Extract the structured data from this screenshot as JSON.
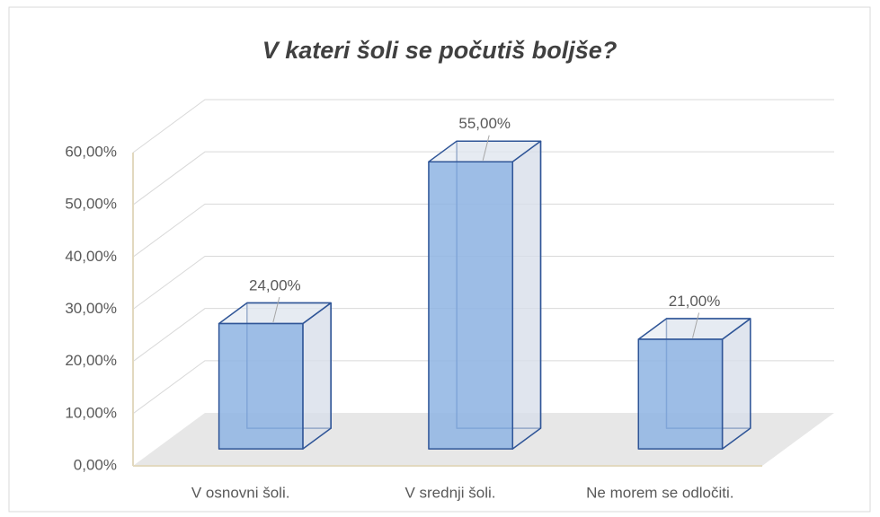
{
  "chart_data": {
    "type": "bar3d",
    "title": "V kateri šoli se počutiš boljše?",
    "categories": [
      "V osnovni šoli.",
      "V srednji šoli.",
      "Ne morem se odločiti."
    ],
    "values": [
      24,
      55,
      21
    ],
    "value_labels": [
      "24,00%",
      "55,00%",
      "21,00%"
    ],
    "color": "#8eb4e3",
    "ylim": [
      0,
      60
    ],
    "yticks": [
      {
        "value": 0,
        "label": "0,00%"
      },
      {
        "value": 10,
        "label": "10,00%"
      },
      {
        "value": 20,
        "label": "20,00%"
      },
      {
        "value": 30,
        "label": "30,00%"
      },
      {
        "value": 40,
        "label": "40,00%"
      },
      {
        "value": 50,
        "label": "50,00%"
      },
      {
        "value": 60,
        "label": "60,00%"
      }
    ],
    "grid": true
  }
}
